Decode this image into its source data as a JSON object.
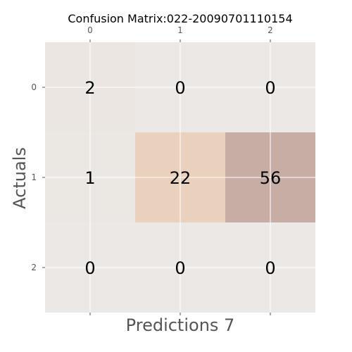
{
  "chart_data": {
    "type": "heatmap",
    "title": "Confusion Matrix:022-20090701110154",
    "xlabel": "Predictions 7",
    "ylabel": "Actuals",
    "x_categories": [
      "0",
      "1",
      "2"
    ],
    "y_categories": [
      "0",
      "1",
      "2"
    ],
    "values": [
      [
        2,
        0,
        0
      ],
      [
        1,
        22,
        56
      ],
      [
        0,
        0,
        0
      ]
    ],
    "grid": true,
    "x_ticks_position": "top",
    "colors": {
      "background": "#ebe8e5",
      "grid": "#ffffff",
      "low": "#ebe8e5",
      "mid": "#ead1bc",
      "high": "#c8ada4"
    }
  }
}
